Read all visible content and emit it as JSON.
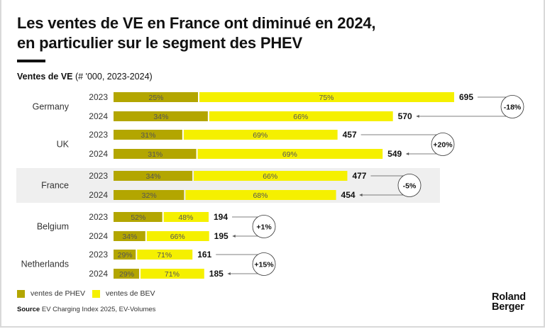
{
  "header": {
    "title_line1": "Les ventes de VE en France ont diminué en 2024,",
    "title_line2": "en particulier sur le segment des PHEV",
    "subtitle_bold": "Ventes de VE",
    "subtitle_rest": " (# '000, 2023-2024)"
  },
  "colors": {
    "phev": "#b3a600",
    "bev": "#f5f000",
    "highlight_band": "#efefef",
    "text": "#111111"
  },
  "chart_data": {
    "type": "bar",
    "orientation": "horizontal",
    "stacked": true,
    "title": "Les ventes de VE en France ont diminué en 2024, en particulier sur le segment des PHEV",
    "subtitle": "Ventes de VE (# '000, 2023-2024)",
    "unit": "'000 vehicles",
    "series_names": [
      "ventes de PHEV",
      "ventes de BEV"
    ],
    "highlighted_country": "France",
    "groups": [
      {
        "country": "Germany",
        "change": "-18%",
        "rows": [
          {
            "year": "2023",
            "total": 695,
            "phev_pct": 25,
            "bev_pct": 75
          },
          {
            "year": "2024",
            "total": 570,
            "phev_pct": 34,
            "bev_pct": 66
          }
        ]
      },
      {
        "country": "UK",
        "change": "+20%",
        "rows": [
          {
            "year": "2023",
            "total": 457,
            "phev_pct": 31,
            "bev_pct": 69
          },
          {
            "year": "2024",
            "total": 549,
            "phev_pct": 31,
            "bev_pct": 69
          }
        ]
      },
      {
        "country": "France",
        "change": "-5%",
        "rows": [
          {
            "year": "2023",
            "total": 477,
            "phev_pct": 34,
            "bev_pct": 66
          },
          {
            "year": "2024",
            "total": 454,
            "phev_pct": 32,
            "bev_pct": 68
          }
        ]
      },
      {
        "country": "Belgium",
        "change": "+1%",
        "rows": [
          {
            "year": "2023",
            "total": 194,
            "phev_pct": 52,
            "bev_pct": 48
          },
          {
            "year": "2024",
            "total": 195,
            "phev_pct": 34,
            "bev_pct": 66
          }
        ]
      },
      {
        "country": "Netherlands",
        "change": "+15%",
        "rows": [
          {
            "year": "2023",
            "total": 161,
            "phev_pct": 29,
            "bev_pct": 71
          },
          {
            "year": "2024",
            "total": 185,
            "phev_pct": 29,
            "bev_pct": 71
          }
        ]
      }
    ],
    "xlim": [
      0,
      695
    ],
    "legend_position": "bottom-left"
  },
  "legend": {
    "phev_label": "ventes de PHEV",
    "bev_label": "ventes de BEV"
  },
  "footer": {
    "source_bold": "Source",
    "source_text": " EV Charging Index 2025, EV-Volumes",
    "logo_line1": "Roland",
    "logo_line2": "Berger"
  }
}
